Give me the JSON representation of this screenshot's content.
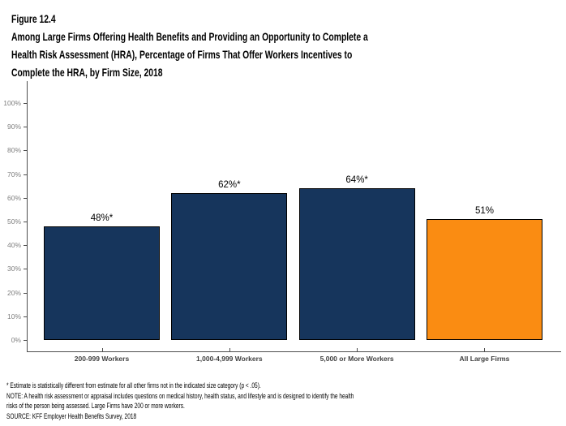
{
  "header": {
    "figure_label": "Figure 12.4",
    "title_lines": [
      "Among Large Firms Offering Health Benefits and Providing an Opportunity to Complete a",
      "Health Risk Assessment (HRA), Percentage of Firms That Offer Workers Incentives to",
      "Complete the HRA, by Firm Size, 2018"
    ]
  },
  "chart_data": {
    "type": "bar",
    "title": "Among Large Firms Offering Health Benefits and Providing an Opportunity to Complete a Health Risk Assessment (HRA), Percentage of Firms That Offer Workers Incentives to Complete the HRA, by Firm Size, 2018",
    "categories": [
      "200-999 Workers",
      "1,000-4,999 Workers",
      "5,000 or More Workers",
      "All Large Firms"
    ],
    "values": [
      48,
      62,
      64,
      51
    ],
    "value_labels": [
      "48%*",
      "62%*",
      "64%*",
      "51%"
    ],
    "bar_colors": [
      "#16355C",
      "#16355C",
      "#16355C",
      "#FA8C12"
    ],
    "xlabel": "",
    "ylabel": "",
    "ylim": [
      0,
      100
    ],
    "ytick_step": 10,
    "ytick_labels": [
      "0%",
      "10%",
      "20%",
      "30%",
      "40%",
      "50%",
      "60%",
      "70%",
      "80%",
      "90%",
      "100%"
    ],
    "grid": false,
    "legend": "none"
  },
  "colors": {
    "bar_navy": "#16355C",
    "bar_orange": "#FA8C12",
    "axis_line": "#4D4D4D",
    "ytick_label": "#7F7F7F",
    "xtick_label": "#404040",
    "bar_border": "#000000"
  },
  "footnotes": {
    "estimate": "* Estimate is statistically different from estimate for all other firms not in the indicated size category (p < .05).",
    "note": "NOTE: A health risk assessment or appraisal includes questions on medical history, health status, and lifestyle and is designed to identify the health risks of the person being assessed. Large Firms have 200 or more workers.",
    "source": "SOURCE: KFF Employer Health Benefits Survey, 2018"
  }
}
